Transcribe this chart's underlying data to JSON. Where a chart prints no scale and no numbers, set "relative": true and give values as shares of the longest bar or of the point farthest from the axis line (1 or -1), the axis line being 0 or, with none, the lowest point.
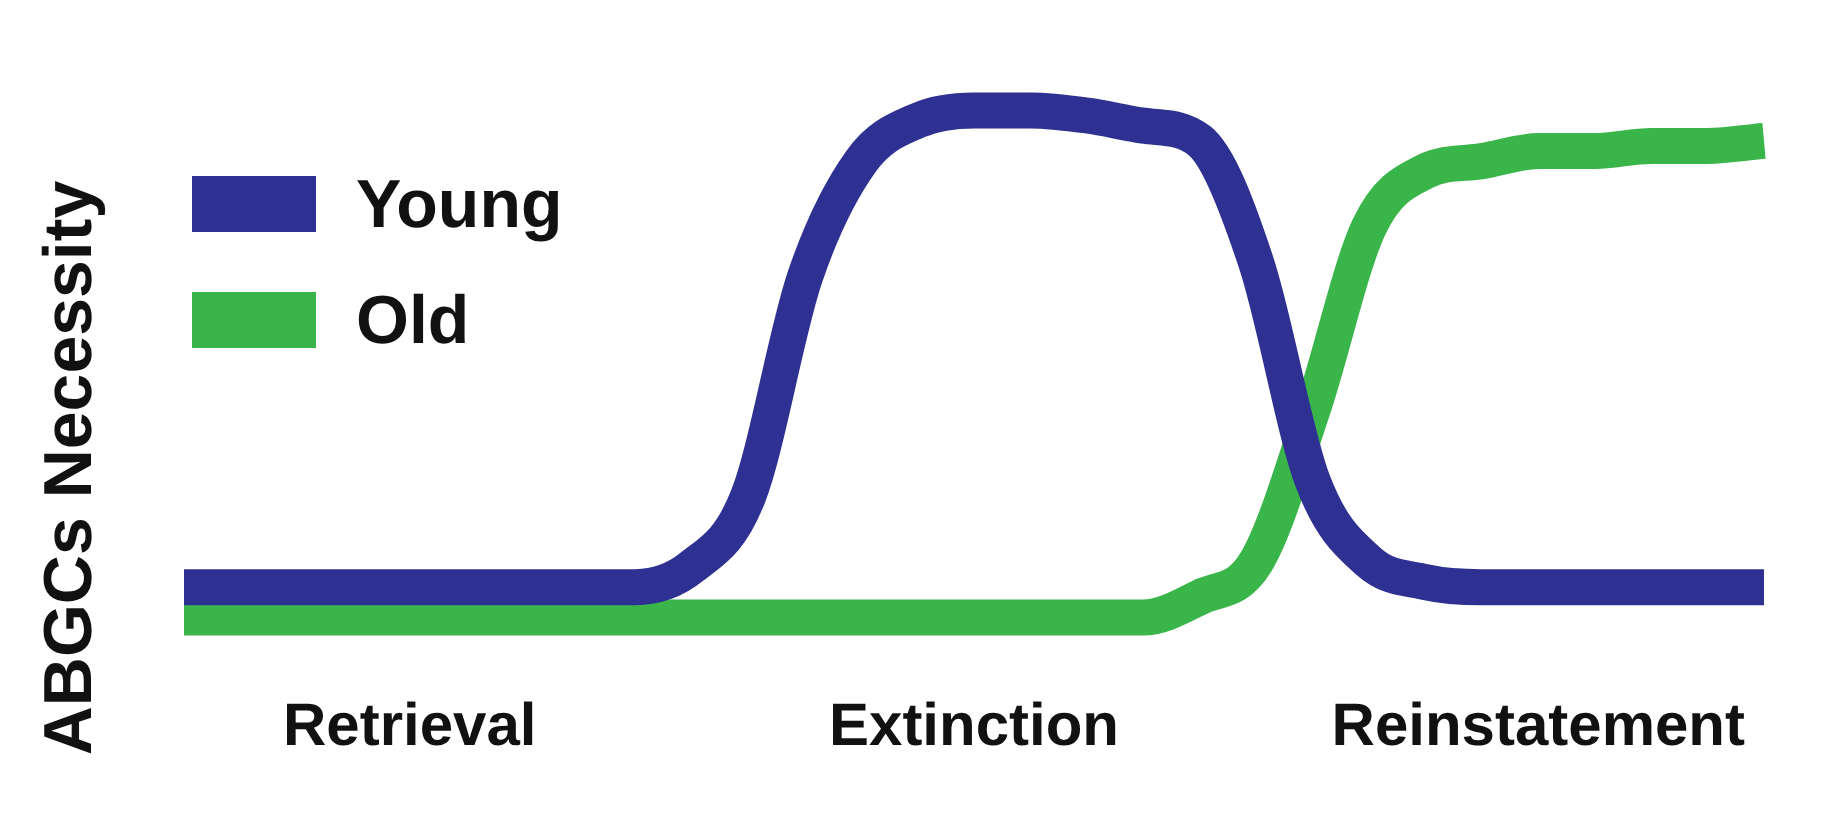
{
  "chart_data": {
    "type": "line",
    "ylabel": "ABGCs Necessity",
    "relative": true,
    "legend": "top left",
    "marker": "none",
    "line_style": "solid",
    "grid": false,
    "categories": [
      null,
      null,
      null,
      null,
      "Retrieval",
      null,
      null,
      null,
      null,
      null,
      null,
      null,
      null,
      null,
      "Extinction",
      null,
      null,
      null,
      null,
      null,
      null,
      null,
      null,
      null,
      "Reinstatement",
      null,
      null,
      null,
      null
    ],
    "series": [
      {
        "name": "Young",
        "color": "#2e3192",
        "values": [
          0.06,
          0.06,
          0.06,
          0.06,
          0.06,
          0.06,
          0.06,
          0.06,
          0.06,
          0.1,
          0.24,
          0.67,
          0.9,
          0.98,
          1,
          1,
          0.99,
          0.97,
          0.94,
          0.7,
          0.27,
          0.11,
          0.07,
          0.06,
          0.06,
          0.06,
          0.06,
          0.06,
          0.06
        ]
      },
      {
        "name": "Old",
        "color": "#39b54a",
        "values": [
          0,
          0,
          0,
          0,
          0,
          0,
          0,
          0,
          0,
          0,
          0,
          0,
          0,
          0,
          0,
          0,
          0,
          0,
          0.04,
          0.11,
          0.41,
          0.77,
          0.88,
          0.9,
          0.92,
          0.92,
          0.93,
          0.93,
          0.94
        ]
      }
    ]
  }
}
